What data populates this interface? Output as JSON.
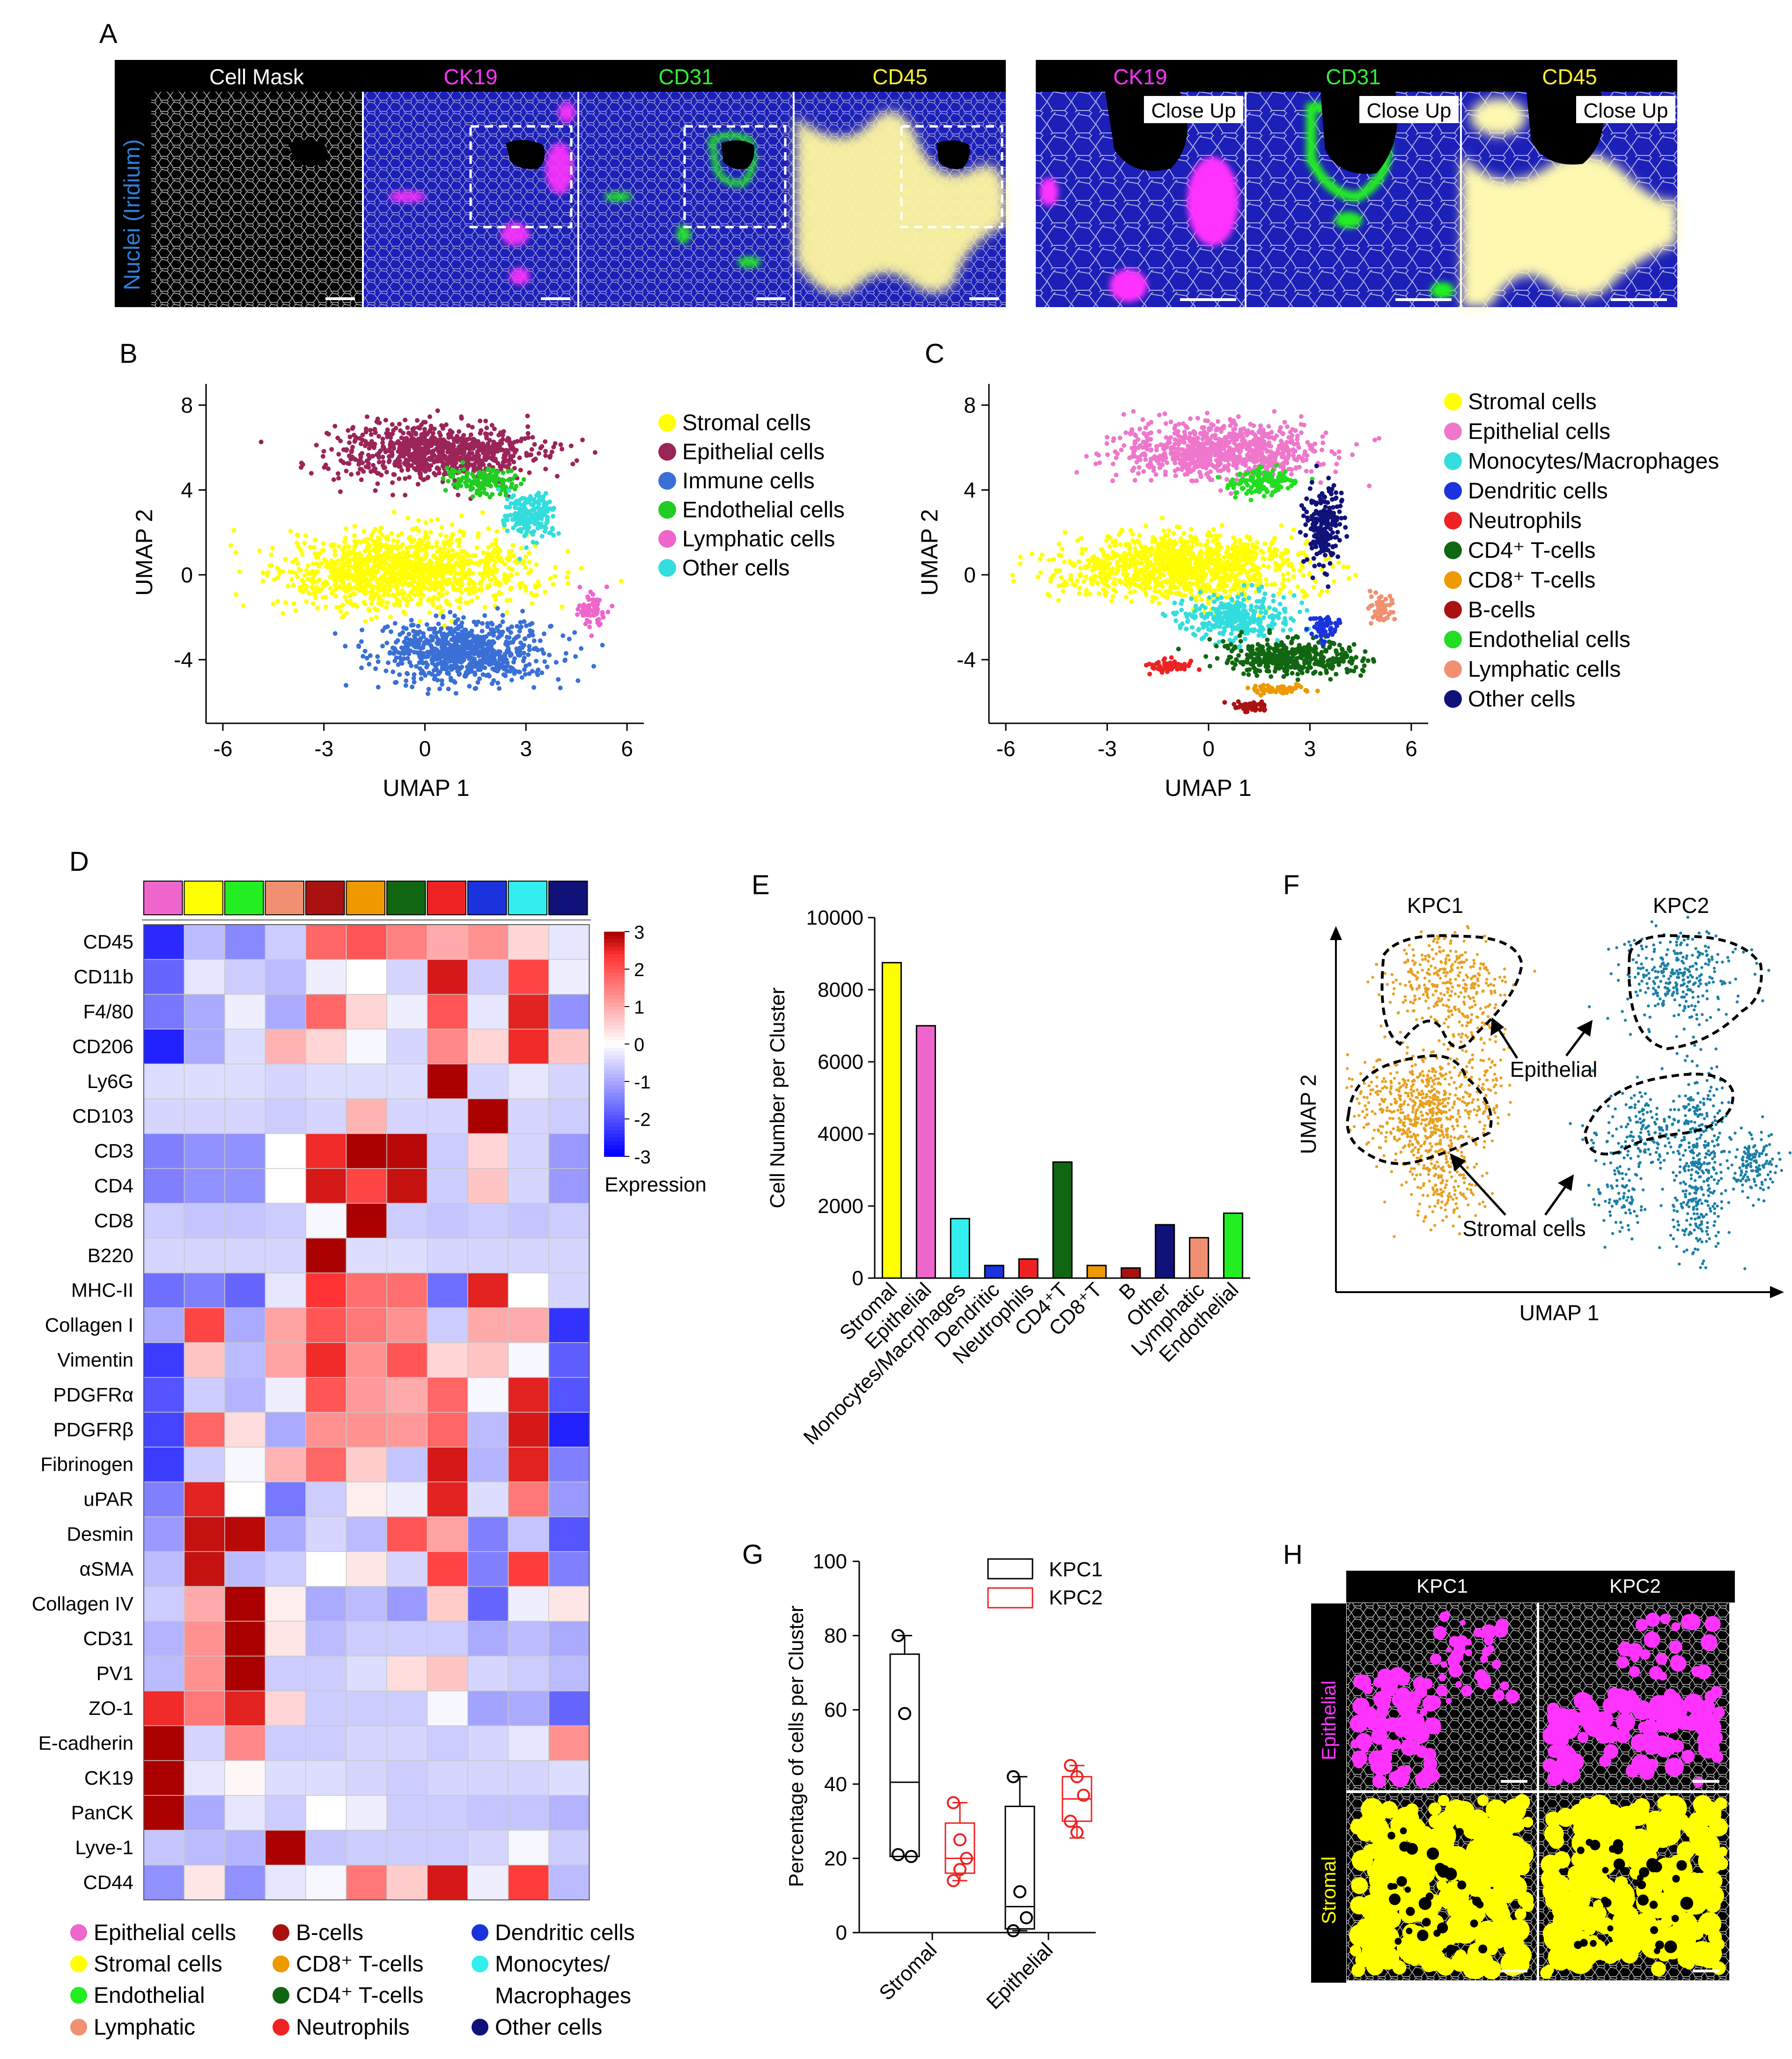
{
  "panels": {
    "A": "A",
    "B": "B",
    "C": "C",
    "D": "D",
    "E": "E",
    "F": "F",
    "G": "G",
    "H": "H"
  },
  "panel_a": {
    "y_label": "Nuclei (Iridium)",
    "headers": [
      {
        "text": "Cell Mask",
        "color": "#ffffff"
      },
      {
        "text": "CK19",
        "color": "#ff33ff"
      },
      {
        "text": "CD31",
        "color": "#33ee33"
      },
      {
        "text": "CD45",
        "color": "#ffee33"
      }
    ],
    "closeup_headers": [
      {
        "text": "CK19",
        "color": "#ff33ff"
      },
      {
        "text": "CD31",
        "color": "#33ee33"
      },
      {
        "text": "CD45",
        "color": "#ffee33"
      }
    ],
    "closeup_tag": "Close Up"
  },
  "chart_data": [
    {
      "panel": "B",
      "type": "scatter",
      "title": "",
      "xlabel": "UMAP 1",
      "ylabel": "UMAP 2",
      "xlim": [
        -6.5,
        6.5
      ],
      "ylim": [
        -7,
        9
      ],
      "xticks": [
        -6,
        -3,
        0,
        3,
        6
      ],
      "yticks": [
        8,
        4,
        0,
        -4
      ],
      "legend": [
        {
          "label": "Stromal cells",
          "color": "#ffff00"
        },
        {
          "label": "Epithelial cells",
          "color": "#9b2458"
        },
        {
          "label": "Immune cells",
          "color": "#3a6fd6"
        },
        {
          "label": "Endothelial cells",
          "color": "#22cc22"
        },
        {
          "label": "Lymphatic cells",
          "color": "#ee66cc"
        },
        {
          "label": "Other cells",
          "color": "#33dddd"
        }
      ],
      "clusters": [
        {
          "label": "Epithelial cells",
          "cx": 0.3,
          "cy": 5.8,
          "sx": 2.7,
          "sy": 1.2
        },
        {
          "label": "Stromal cells",
          "cx": -0.6,
          "cy": 0.2,
          "sx": 3.3,
          "sy": 1.5
        },
        {
          "label": "Immune cells",
          "cx": 1.2,
          "cy": -3.6,
          "sx": 2.3,
          "sy": 1.3
        },
        {
          "label": "Endothelial cells",
          "cx": 1.6,
          "cy": 4.4,
          "sx": 0.9,
          "sy": 0.6
        },
        {
          "label": "Lymphatic cells",
          "cx": 5.0,
          "cy": -1.6,
          "sx": 0.35,
          "sy": 0.7
        },
        {
          "label": "Other cells",
          "cx": 3.1,
          "cy": 2.8,
          "sx": 0.7,
          "sy": 1.0
        }
      ]
    },
    {
      "panel": "C",
      "type": "scatter",
      "title": "",
      "xlabel": "UMAP 1",
      "ylabel": "UMAP 2",
      "xlim": [
        -6.5,
        6.5
      ],
      "ylim": [
        -7,
        9
      ],
      "xticks": [
        -6,
        -3,
        0,
        3,
        6
      ],
      "yticks": [
        8,
        4,
        0,
        -4
      ],
      "legend": [
        {
          "label": "Stromal cells",
          "color": "#ffff00"
        },
        {
          "label": "Epithelial cells",
          "color": "#ee77cc"
        },
        {
          "label": "Monocytes/Macrophages",
          "color": "#33dddd"
        },
        {
          "label": "Dendritic cells",
          "color": "#1a33dd"
        },
        {
          "label": "Neutrophils",
          "color": "#ee2222"
        },
        {
          "label": "CD4⁺ T-cells",
          "color": "#116611"
        },
        {
          "label": "CD8⁺ T-cells",
          "color": "#ee9900"
        },
        {
          "label": "B-cells",
          "color": "#aa1111"
        },
        {
          "label": "Endothelial cells",
          "color": "#22dd22"
        },
        {
          "label": "Lymphatic cells",
          "color": "#f09070"
        },
        {
          "label": "Other cells",
          "color": "#11117a"
        }
      ],
      "clusters": [
        {
          "label": "Epithelial cells",
          "cx": 0.3,
          "cy": 5.8,
          "sx": 2.7,
          "sy": 1.2
        },
        {
          "label": "Stromal cells",
          "cx": -0.8,
          "cy": 0.4,
          "sx": 3.2,
          "sy": 1.4
        },
        {
          "label": "Monocytes/Macrophages",
          "cx": 0.8,
          "cy": -2.0,
          "sx": 1.4,
          "sy": 0.9
        },
        {
          "label": "CD4⁺ T-cells",
          "cx": 2.5,
          "cy": -3.9,
          "sx": 1.9,
          "sy": 0.8
        },
        {
          "label": "Endothelial cells",
          "cx": 1.6,
          "cy": 4.4,
          "sx": 0.9,
          "sy": 0.6
        },
        {
          "label": "Other cells",
          "cx": 3.4,
          "cy": 2.2,
          "sx": 0.5,
          "sy": 1.6
        },
        {
          "label": "Lymphatic cells",
          "cx": 5.1,
          "cy": -1.5,
          "sx": 0.35,
          "sy": 0.6
        },
        {
          "label": "Neutrophils",
          "cx": -1.2,
          "cy": -4.3,
          "sx": 0.6,
          "sy": 0.25
        },
        {
          "label": "Dendritic cells",
          "cx": 3.4,
          "cy": -2.4,
          "sx": 0.4,
          "sy": 0.5
        },
        {
          "label": "CD8⁺ T-cells",
          "cx": 2.0,
          "cy": -5.4,
          "sx": 0.8,
          "sy": 0.2
        },
        {
          "label": "B-cells",
          "cx": 1.2,
          "cy": -6.2,
          "sx": 0.5,
          "sy": 0.2
        }
      ]
    },
    {
      "panel": "D",
      "type": "heatmap",
      "legend_title": "Expression",
      "scale_ticks": [
        3,
        2,
        1,
        0,
        -1,
        -2,
        -3
      ],
      "column_colors": [
        "#ee66cc",
        "#ffff00",
        "#22ee22",
        "#f09070",
        "#aa1111",
        "#ee9900",
        "#116611",
        "#ee2222",
        "#1a33dd",
        "#33eeee",
        "#11117a"
      ],
      "rows": [
        "CD45",
        "CD11b",
        "F4/80",
        "CD206",
        "Ly6G",
        "CD103",
        "CD3",
        "CD4",
        "CD8",
        "B220",
        "MHC-II",
        "Collagen I",
        "Vimentin",
        "PDGFRα",
        "PDGFRβ",
        "Fibrinogen",
        "uPAR",
        "Desmin",
        "αSMA",
        "Collagen IV",
        "CD31",
        "PV1",
        "ZO-1",
        "E-cadherin",
        "CK19",
        "PanCK",
        "Lyve-1",
        "CD44"
      ],
      "values": [
        [
          -2.5,
          -0.8,
          -1.4,
          -0.6,
          1.8,
          2.0,
          1.5,
          1.0,
          1.3,
          0.5,
          -0.3
        ],
        [
          -1.8,
          -0.3,
          -0.6,
          -0.8,
          -0.2,
          0.0,
          -0.5,
          2.7,
          -0.6,
          2.2,
          -0.2
        ],
        [
          -1.6,
          -1.0,
          -0.2,
          -1.0,
          1.8,
          0.5,
          -0.2,
          2.0,
          -0.3,
          2.6,
          -1.3
        ],
        [
          -2.6,
          -1.0,
          -0.4,
          0.9,
          0.5,
          -0.1,
          -0.5,
          1.4,
          0.5,
          2.5,
          0.7
        ],
        [
          -0.4,
          -0.4,
          -0.4,
          -0.5,
          -0.4,
          -0.4,
          -0.4,
          3.0,
          -0.5,
          -0.3,
          -0.5
        ],
        [
          -0.5,
          -0.5,
          -0.5,
          -0.6,
          -0.5,
          0.9,
          -0.5,
          -0.5,
          3.0,
          -0.5,
          -0.6
        ],
        [
          -1.5,
          -1.3,
          -1.3,
          0.0,
          2.5,
          3.0,
          2.9,
          -0.6,
          0.5,
          -0.5,
          -1.2
        ],
        [
          -1.5,
          -1.3,
          -1.3,
          0.0,
          2.7,
          2.2,
          2.8,
          -0.6,
          0.7,
          -0.5,
          -1.2
        ],
        [
          -0.6,
          -0.7,
          -0.7,
          -0.6,
          -0.1,
          3.0,
          -0.6,
          -0.7,
          -0.6,
          -0.7,
          -0.6
        ],
        [
          -0.5,
          -0.5,
          -0.5,
          -0.5,
          3.0,
          -0.4,
          -0.4,
          -0.5,
          -0.5,
          -0.5,
          -0.5
        ],
        [
          -1.7,
          -1.5,
          -1.8,
          -0.3,
          2.4,
          1.7,
          1.7,
          -1.7,
          2.6,
          0.0,
          -0.5
        ],
        [
          -1.0,
          2.2,
          -1.0,
          1.1,
          2.0,
          1.6,
          1.3,
          -0.6,
          1.0,
          1.0,
          -2.4
        ],
        [
          -2.3,
          0.7,
          -0.8,
          1.1,
          2.5,
          1.3,
          2.0,
          0.5,
          0.7,
          -0.1,
          -1.9
        ],
        [
          -2.0,
          -0.6,
          -0.9,
          -0.2,
          2.0,
          1.2,
          1.0,
          1.8,
          -0.1,
          2.6,
          -2.0
        ],
        [
          -2.2,
          1.8,
          0.4,
          -1.0,
          1.3,
          1.3,
          1.2,
          1.8,
          -0.8,
          2.7,
          -2.6
        ],
        [
          -2.3,
          -0.6,
          -0.1,
          0.9,
          1.8,
          0.6,
          -0.7,
          2.7,
          -0.9,
          2.6,
          -1.5
        ],
        [
          -1.5,
          2.6,
          0.0,
          -1.6,
          -0.6,
          0.2,
          -0.2,
          2.6,
          -0.4,
          1.6,
          -1.2
        ],
        [
          -1.2,
          2.8,
          2.9,
          -1.0,
          -0.5,
          -0.8,
          2.0,
          1.1,
          -1.5,
          -0.7,
          -2.0
        ],
        [
          -0.8,
          2.8,
          -0.8,
          -0.6,
          0.0,
          0.3,
          -0.5,
          2.2,
          -1.5,
          2.3,
          -1.5
        ],
        [
          -0.6,
          1.0,
          3.0,
          0.2,
          -1.0,
          -0.8,
          -1.2,
          0.6,
          -1.8,
          -0.2,
          0.3
        ],
        [
          -0.9,
          1.3,
          3.0,
          0.3,
          -0.8,
          -0.6,
          -0.6,
          -0.6,
          -1.0,
          -0.8,
          -1.0
        ],
        [
          -0.8,
          1.3,
          3.0,
          -0.6,
          -0.6,
          -0.4,
          0.4,
          0.7,
          -0.5,
          -0.6,
          -0.8
        ],
        [
          2.5,
          1.6,
          2.6,
          0.5,
          -0.6,
          -0.6,
          -0.6,
          -0.1,
          -1.1,
          -1.0,
          -1.8
        ],
        [
          3.0,
          -0.5,
          1.4,
          -0.6,
          -0.6,
          -0.5,
          -0.5,
          -0.6,
          -0.5,
          -0.3,
          1.3
        ],
        [
          3.0,
          -0.3,
          0.1,
          -0.4,
          -0.4,
          -0.5,
          -0.6,
          -0.5,
          -0.5,
          -0.5,
          -0.4
        ],
        [
          3.0,
          -1.0,
          -0.3,
          -0.6,
          0.0,
          -0.2,
          -0.6,
          -0.6,
          -0.7,
          -0.7,
          -0.9
        ],
        [
          -0.7,
          -0.8,
          -0.9,
          3.0,
          -0.7,
          -0.6,
          -0.6,
          -0.6,
          -0.5,
          -0.1,
          -0.6
        ],
        [
          -1.3,
          0.3,
          -1.3,
          -0.3,
          -0.1,
          1.6,
          0.6,
          2.7,
          -0.2,
          2.3,
          -0.8
        ]
      ],
      "bottom_legend": [
        {
          "label": "Epithelial cells",
          "color": "#ee66cc"
        },
        {
          "label": "Stromal cells",
          "color": "#ffff00"
        },
        {
          "label": "Endothelial",
          "color": "#22ee22"
        },
        {
          "label": "Lymphatic",
          "color": "#f09070"
        },
        {
          "label": "B-cells",
          "color": "#aa1111"
        },
        {
          "label": "CD8⁺ T-cells",
          "color": "#ee9900"
        },
        {
          "label": "CD4⁺ T-cells",
          "color": "#116611"
        },
        {
          "label": "Neutrophils",
          "color": "#ee2222"
        },
        {
          "label": "Dendritic cells",
          "color": "#1a33dd"
        },
        {
          "label": "Monocytes/",
          "color": "#33eeee",
          "line2": "Macrophages"
        },
        {
          "label": "Other cells",
          "color": "#11117a"
        }
      ]
    },
    {
      "panel": "E",
      "type": "bar",
      "title": "",
      "xlabel": "",
      "ylabel": "Cell Number per Cluster",
      "ylim": [
        0,
        10000
      ],
      "yticks": [
        0,
        2000,
        4000,
        6000,
        8000,
        10000
      ],
      "categories": [
        "Stromal",
        "Epithelial",
        "Monocytes/Macrphages",
        "Dendritic",
        "Neutrophils",
        "CD4⁺T",
        "CD8⁺T",
        "B",
        "Other",
        "Lymphatic",
        "Endothelial"
      ],
      "values": [
        8750,
        7000,
        1650,
        350,
        530,
        3220,
        350,
        280,
        1480,
        1120,
        1800
      ],
      "colors": [
        "#ffff00",
        "#ee66cc",
        "#33eeee",
        "#1a33dd",
        "#ee2222",
        "#116611",
        "#ee9900",
        "#aa1111",
        "#11117a",
        "#f09070",
        "#22ee22"
      ]
    },
    {
      "panel": "F",
      "type": "scatter",
      "xlabel": "UMAP 1",
      "ylabel": "UMAP 2",
      "groups": [
        {
          "label": "KPC1",
          "color": "#e8a020"
        },
        {
          "label": "KPC2",
          "color": "#1b7fa6"
        }
      ],
      "annotations": [
        "Epithelial",
        "Stromal cells"
      ]
    },
    {
      "panel": "G",
      "type": "box",
      "ylabel": "Percentage of cells per Cluster",
      "ylim": [
        0,
        100
      ],
      "yticks": [
        0,
        20,
        40,
        60,
        80,
        100
      ],
      "categories": [
        "Stromal",
        "Epithelial"
      ],
      "series": [
        {
          "name": "KPC1",
          "color": "#000000",
          "boxes": [
            {
              "min": 20.5,
              "q1": 20.5,
              "median": 40.5,
              "q3": 75,
              "max": 80,
              "points": [
                80,
                59,
                20.5,
                21
              ]
            },
            {
              "min": 0.5,
              "q1": 1,
              "median": 7,
              "q3": 34,
              "max": 42,
              "points": [
                42,
                11,
                4,
                0.5
              ]
            }
          ]
        },
        {
          "name": "KPC2",
          "color": "#ee2222",
          "boxes": [
            {
              "min": 14,
              "q1": 16,
              "median": 20,
              "q3": 29.5,
              "max": 35,
              "points": [
                35,
                25,
                20,
                14,
                17
              ]
            },
            {
              "min": 25.5,
              "q1": 30,
              "median": 36,
              "q3": 42,
              "max": 45,
              "points": [
                45,
                42,
                37,
                30,
                27
              ]
            }
          ]
        }
      ]
    }
  ],
  "panel_h": {
    "columns": [
      "KPC1",
      "KPC2"
    ],
    "rows": [
      {
        "label": "Epithelial",
        "color": "#ff33ff"
      },
      {
        "label": "Stromal",
        "color": "#ffff00"
      }
    ]
  }
}
